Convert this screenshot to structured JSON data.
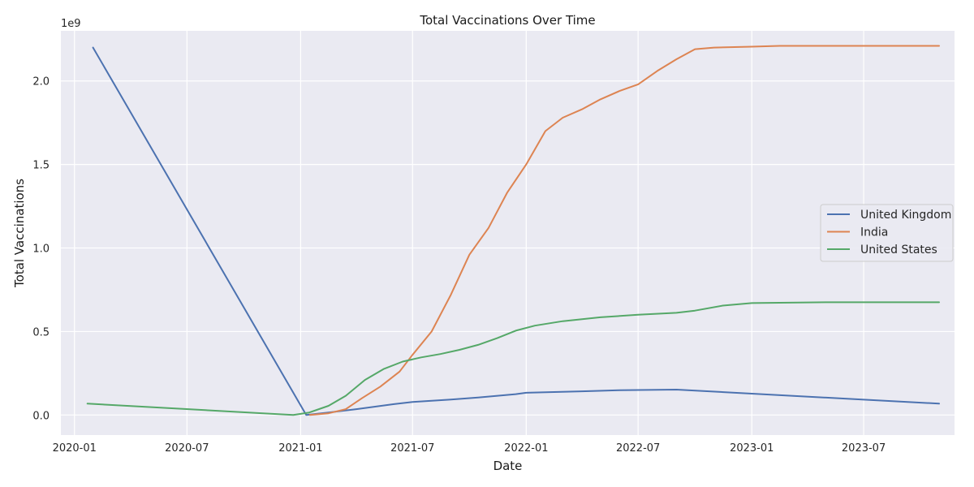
{
  "chart_data": {
    "type": "line",
    "title": "Total Vaccinations Over Time",
    "xlabel": "Date",
    "ylabel": "Total Vaccinations",
    "y_scale_label": "1e9",
    "x_axis_type": "date",
    "xlim": [
      "2019-12-10",
      "2023-11-25"
    ],
    "ylim": [
      -0.12,
      2.3
    ],
    "x_ticks": [
      "2020-01-01",
      "2020-07-01",
      "2021-01-01",
      "2021-07-01",
      "2022-01-01",
      "2022-07-01",
      "2023-01-01",
      "2023-07-01"
    ],
    "x_tick_labels": [
      "2020-01",
      "2020-07",
      "2021-01",
      "2021-07",
      "2022-01",
      "2022-07",
      "2023-01",
      "2023-07"
    ],
    "y_ticks": [
      0.0,
      0.5,
      1.0,
      1.5,
      2.0
    ],
    "y_tick_labels": [
      "0.0",
      "0.5",
      "1.0",
      "1.5",
      "2.0"
    ],
    "grid": true,
    "background": "#eaeaf2",
    "legend_position": "center-right",
    "series": [
      {
        "name": "United Kingdom",
        "color": "#4c72b0",
        "points": [
          [
            "2020-01-31",
            2.2
          ],
          [
            "2021-01-10",
            0.0
          ],
          [
            "2021-02-15",
            0.015
          ],
          [
            "2021-04-01",
            0.035
          ],
          [
            "2021-06-01",
            0.065
          ],
          [
            "2021-07-01",
            0.078
          ],
          [
            "2021-09-01",
            0.093
          ],
          [
            "2021-10-15",
            0.105
          ],
          [
            "2021-12-15",
            0.125
          ],
          [
            "2022-01-01",
            0.133
          ],
          [
            "2022-04-01",
            0.142
          ],
          [
            "2022-06-01",
            0.148
          ],
          [
            "2022-09-01",
            0.152
          ],
          [
            "2023-01-01",
            0.128
          ],
          [
            "2023-06-01",
            0.098
          ],
          [
            "2023-10-31",
            0.068
          ]
        ]
      },
      {
        "name": "India",
        "color": "#dd8452",
        "points": [
          [
            "2021-01-16",
            0.0
          ],
          [
            "2021-02-15",
            0.01
          ],
          [
            "2021-03-15",
            0.035
          ],
          [
            "2021-04-10",
            0.1
          ],
          [
            "2021-05-10",
            0.17
          ],
          [
            "2021-06-10",
            0.26
          ],
          [
            "2021-07-01",
            0.36
          ],
          [
            "2021-08-01",
            0.5
          ],
          [
            "2021-09-01",
            0.72
          ],
          [
            "2021-10-01",
            0.96
          ],
          [
            "2021-11-01",
            1.12
          ],
          [
            "2021-12-01",
            1.33
          ],
          [
            "2022-01-01",
            1.5
          ],
          [
            "2022-02-01",
            1.7
          ],
          [
            "2022-03-01",
            1.78
          ],
          [
            "2022-04-01",
            1.83
          ],
          [
            "2022-05-01",
            1.89
          ],
          [
            "2022-06-01",
            1.94
          ],
          [
            "2022-07-01",
            1.98
          ],
          [
            "2022-08-01",
            2.06
          ],
          [
            "2022-09-01",
            2.13
          ],
          [
            "2022-10-01",
            2.19
          ],
          [
            "2022-11-01",
            2.2
          ],
          [
            "2023-01-01",
            2.205
          ],
          [
            "2023-02-15",
            2.21
          ],
          [
            "2023-10-31",
            2.21
          ]
        ]
      },
      {
        "name": "United States",
        "color": "#55a868",
        "points": [
          [
            "2020-01-22",
            0.068
          ],
          [
            "2020-12-20",
            0.0
          ],
          [
            "2021-01-15",
            0.015
          ],
          [
            "2021-02-15",
            0.055
          ],
          [
            "2021-03-15",
            0.115
          ],
          [
            "2021-04-15",
            0.21
          ],
          [
            "2021-05-15",
            0.275
          ],
          [
            "2021-06-15",
            0.32
          ],
          [
            "2021-07-15",
            0.345
          ],
          [
            "2021-08-15",
            0.365
          ],
          [
            "2021-09-15",
            0.39
          ],
          [
            "2021-10-15",
            0.42
          ],
          [
            "2021-11-15",
            0.46
          ],
          [
            "2021-12-15",
            0.505
          ],
          [
            "2022-01-15",
            0.535
          ],
          [
            "2022-03-01",
            0.562
          ],
          [
            "2022-05-01",
            0.585
          ],
          [
            "2022-07-01",
            0.6
          ],
          [
            "2022-09-01",
            0.612
          ],
          [
            "2022-10-01",
            0.625
          ],
          [
            "2022-11-15",
            0.655
          ],
          [
            "2023-01-01",
            0.67
          ],
          [
            "2023-05-01",
            0.675
          ],
          [
            "2023-10-31",
            0.675
          ]
        ]
      }
    ]
  }
}
